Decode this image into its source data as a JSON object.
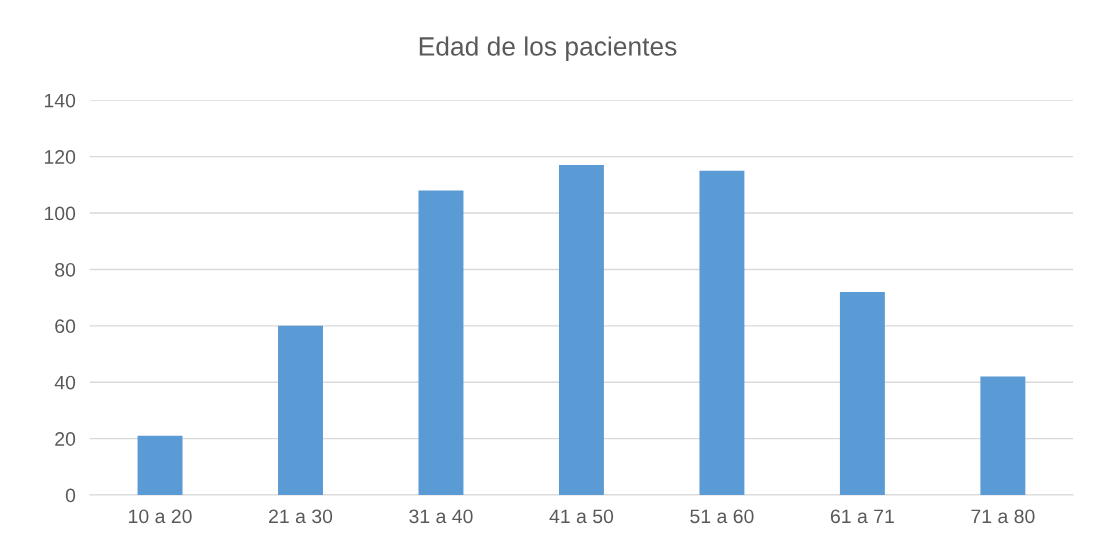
{
  "chart_data": {
    "type": "bar",
    "title": "Edad de los pacientes",
    "categories": [
      "10 a 20",
      "21 a 30",
      "31 a 40",
      "41 a 50",
      "51 a 60",
      "61 a 71",
      "71 a 80"
    ],
    "values": [
      21,
      60,
      108,
      117,
      115,
      72,
      42
    ],
    "color": "#5b9bd5",
    "ylim": [
      0,
      140
    ],
    "yticks": [
      0,
      20,
      40,
      60,
      80,
      100,
      120,
      140
    ],
    "grid": "y"
  }
}
